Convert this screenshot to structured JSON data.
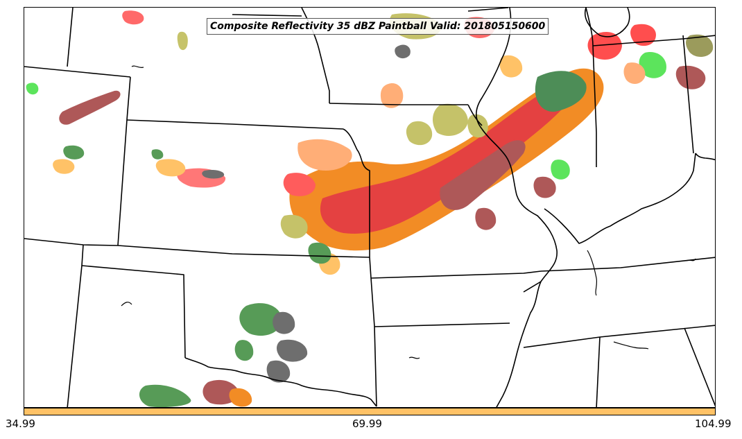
{
  "map": {
    "title": "Composite Reflectivity 35 dBZ Paintball Valid: 201805150600"
  },
  "colorbar": {
    "color": "#ffc266",
    "ticks": [
      "34.99",
      "69.99",
      "104.99"
    ]
  },
  "palette": {
    "orange_light": "#ffa060",
    "orange": "#f07800",
    "red": "#ff3030",
    "dark_red": "#a03c3c",
    "olive": "#bcb850",
    "olive_dark": "#8a8a40",
    "green_bright": "#40e040",
    "green_dark": "#3a8a3a",
    "gray": "#555555",
    "yellow_orange": "#ffb84d"
  }
}
